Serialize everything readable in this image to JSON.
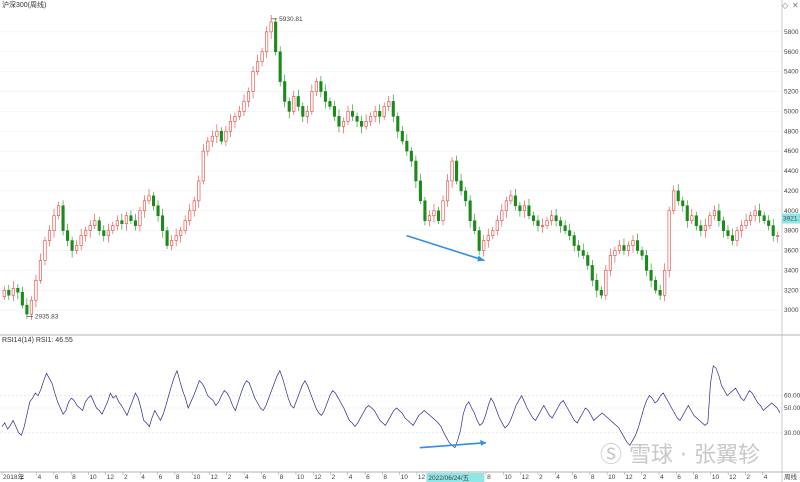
{
  "chart_data": [
    {
      "type": "candlestick",
      "title": "沪深300(周线)",
      "ylim": [
        2800,
        6000
      ],
      "y_ticks": [
        3000,
        3200,
        3400,
        3600,
        3800,
        4000,
        4200,
        4400,
        4600,
        4800,
        5000,
        5200,
        5400,
        5600,
        5800
      ],
      "y_tick_labels": [
        "3000",
        "3200",
        "3400",
        "3600",
        "3800",
        "4000",
        "4200",
        "4400",
        "4600",
        "4800",
        "5000",
        "5200",
        "5400",
        "5600",
        "5800"
      ],
      "annotations": {
        "high": "5930.81",
        "low": "2935.83",
        "last": "3921.7"
      },
      "up_color": "#e8403a",
      "down_color": "#1a8a1a",
      "closes": [
        3200,
        3150,
        3220,
        3180,
        3050,
        2960,
        3100,
        3300,
        3500,
        3700,
        3800,
        3950,
        4050,
        3800,
        3700,
        3600,
        3650,
        3750,
        3800,
        3850,
        3900,
        3800,
        3750,
        3800,
        3850,
        3900,
        3870,
        3950,
        3900,
        3850,
        4000,
        4100,
        4150,
        4050,
        3950,
        3800,
        3650,
        3700,
        3750,
        3800,
        3900,
        4000,
        4100,
        4300,
        4600,
        4700,
        4750,
        4800,
        4700,
        4800,
        4900,
        4950,
        5000,
        5100,
        5200,
        5400,
        5500,
        5600,
        5800,
        5900,
        5600,
        5300,
        5100,
        5000,
        5150,
        5050,
        4950,
        5000,
        5200,
        5300,
        5200,
        5100,
        5050,
        4950,
        4850,
        4900,
        5000,
        4950,
        4900,
        4850,
        4900,
        4950,
        5000,
        4950,
        5050,
        5100,
        4950,
        4800,
        4700,
        4600,
        4500,
        4300,
        4100,
        3900,
        3950,
        4000,
        3900,
        4100,
        4300,
        4500,
        4300,
        4200,
        4100,
        3900,
        3800,
        3600,
        3700,
        3750,
        3800,
        3900,
        4000,
        4100,
        4150,
        4050,
        4000,
        4050,
        3950,
        3900,
        3850,
        3850,
        3900,
        3950,
        3900,
        3850,
        3800,
        3750,
        3650,
        3600,
        3550,
        3450,
        3300,
        3200,
        3150,
        3400,
        3550,
        3600,
        3650,
        3600,
        3650,
        3700,
        3600,
        3550,
        3400,
        3300,
        3200,
        3150,
        3400,
        4000,
        4200,
        4100,
        4050,
        3900,
        3950,
        3850,
        3800,
        3850,
        3950,
        4000,
        3900,
        3800,
        3750,
        3700,
        3800,
        3850,
        3900,
        3950,
        4000,
        3950,
        3900,
        3850,
        3750,
        3750
      ],
      "x_tick_labels": [
        "2018年",
        "2",
        "4",
        "6",
        "8",
        "10",
        "12",
        "2",
        "4",
        "6",
        "8",
        "10",
        "12",
        "2",
        "4",
        "6",
        "8",
        "10",
        "12",
        "2",
        "4",
        "6",
        "8",
        "10",
        "12",
        "2",
        "4",
        "6",
        "8",
        "10",
        "12",
        "2",
        "4",
        "6",
        "8",
        "10",
        "12",
        "2",
        "4",
        "6",
        "8",
        "10",
        "12",
        "2",
        "4"
      ],
      "cursor_label": "2022/06/24/五"
    },
    {
      "type": "line",
      "title": "RSI14(14)  RSI1: 46.55",
      "ylim": [
        0,
        100
      ],
      "y_ticks": [
        30,
        50,
        60
      ],
      "y_tick_labels": [
        "30.00",
        "50.00",
        "60.00"
      ],
      "series": [
        {
          "name": "RSI1",
          "color": "#2a2a88",
          "values": [
            35,
            38,
            33,
            36,
            40,
            35,
            30,
            28,
            35,
            45,
            55,
            58,
            62,
            60,
            65,
            72,
            78,
            74,
            70,
            62,
            55,
            50,
            45,
            48,
            55,
            58,
            56,
            52,
            50,
            48,
            55,
            58,
            60,
            55,
            50,
            48,
            45,
            50,
            55,
            62,
            58,
            60,
            55,
            52,
            48,
            44,
            50,
            56,
            62,
            58,
            50,
            40,
            38,
            35,
            42,
            48,
            44,
            40,
            45,
            52,
            60,
            68,
            75,
            80,
            72,
            64,
            58,
            50,
            55,
            60,
            66,
            72,
            70,
            66,
            60,
            58,
            56,
            52,
            55,
            60,
            64,
            62,
            58,
            52,
            48,
            55,
            62,
            68,
            72,
            70,
            64,
            58,
            54,
            50,
            48,
            52,
            58,
            64,
            70,
            76,
            80,
            74,
            66,
            58,
            52,
            50,
            56,
            62,
            68,
            72,
            68,
            62,
            56,
            50,
            46,
            44,
            48,
            54,
            60,
            64,
            62,
            58,
            54,
            50,
            45,
            40,
            38,
            35,
            38,
            42,
            46,
            50,
            52,
            50,
            48,
            44,
            40,
            38,
            36,
            40,
            44,
            48,
            50,
            48,
            46,
            42,
            40,
            38,
            36,
            40,
            44,
            46,
            48,
            46,
            44,
            42,
            40,
            38,
            35,
            30,
            26,
            22,
            20,
            18,
            24,
            32,
            45,
            52,
            55,
            50,
            46,
            40,
            36,
            38,
            44,
            52,
            58,
            54,
            48,
            42,
            38,
            34,
            36,
            40,
            46,
            52,
            56,
            60,
            55,
            50,
            46,
            42,
            40,
            44,
            48,
            52,
            48,
            44,
            42,
            46,
            50,
            54,
            56,
            52,
            48,
            44,
            40,
            38,
            42,
            46,
            50,
            48,
            44,
            40,
            42,
            44,
            46,
            44,
            42,
            40,
            38,
            36,
            34,
            30,
            26,
            22,
            20,
            24,
            28,
            34,
            42,
            50,
            56,
            60,
            58,
            54,
            56,
            60,
            62,
            58,
            54,
            50,
            46,
            42,
            40,
            44,
            48,
            52,
            48,
            44,
            42,
            40,
            38,
            36,
            38,
            70,
            84,
            82,
            76,
            68,
            64,
            60,
            62,
            64,
            66,
            62,
            58,
            56,
            60,
            64,
            62,
            58,
            54,
            52,
            48,
            50,
            52,
            54,
            52,
            50,
            46
          ]
        }
      ]
    }
  ]
}
